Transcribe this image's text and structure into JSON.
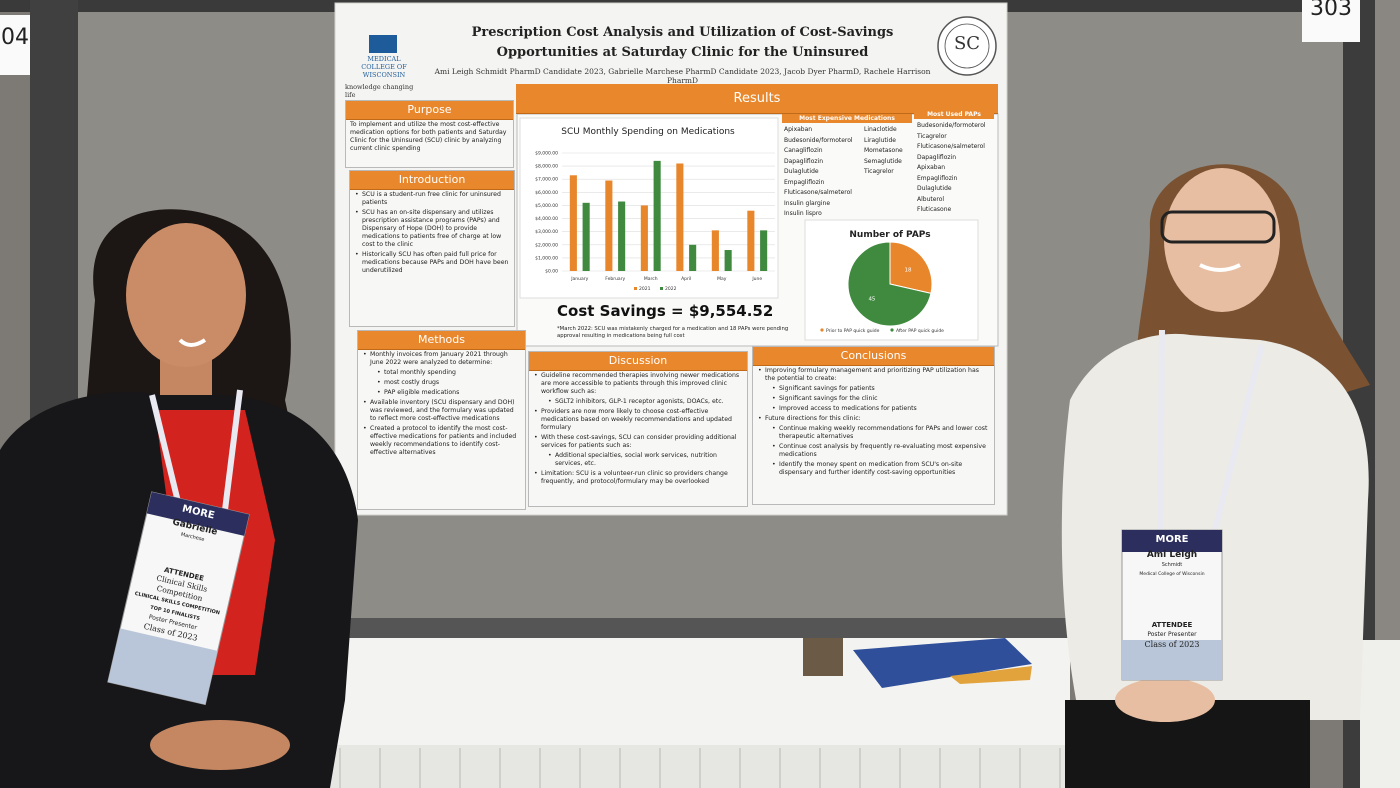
{
  "booth_numbers": [
    "04",
    "303"
  ],
  "poster": {
    "logo": {
      "name": "MEDICAL COLLEGE OF WISCONSIN",
      "tagline": "knowledge changing life"
    },
    "title": "Prescription Cost Analysis and Utilization of Cost-Savings Opportunities at Saturday Clinic for the Uninsured",
    "authors": "Ami Leigh Schmidt PharmD Candidate 2023, Gabrielle Marchese PharmD Candidate 2023, Jacob Dyer PharmD, Rachele Harrison PharmD",
    "seal": "SC",
    "sections": [
      {
        "heading": "Purpose",
        "items": [
          {
            "text": "To implement and utilize the most cost-effective medication options for both patients and Saturday Clinic for the Uninsured (SCU) clinic by analyzing current clinic spending",
            "level": 0
          }
        ]
      },
      {
        "heading": "Introduction",
        "items": [
          {
            "text": "SCU is a student-run free clinic for uninsured patients",
            "level": 1
          },
          {
            "text": "SCU has an on-site dispensary and utilizes prescription assistance programs (PAPs) and Dispensary of Hope (DOH) to provide medications to patients free of charge at low cost to the clinic",
            "level": 1
          },
          {
            "text": "Historically SCU has often paid full price for medications because PAPs and DOH have been underutilized",
            "level": 1
          }
        ]
      },
      {
        "heading": "Methods",
        "items": [
          {
            "text": "Monthly invoices from January 2021 through June 2022 were analyzed to determine:",
            "level": 1
          },
          {
            "text": "total monthly spending",
            "level": 2
          },
          {
            "text": "most costly drugs",
            "level": 2
          },
          {
            "text": "PAP eligible medications",
            "level": 2
          },
          {
            "text": "Available inventory (SCU dispensary and DOH) was reviewed, and the formulary was updated to reflect more cost-effective medications",
            "level": 1
          },
          {
            "text": "Created a protocol to identify the most cost-effective medications for patients and included weekly recommendations to identify cost-effective alternatives",
            "level": 1
          }
        ]
      },
      {
        "heading": "Discussion",
        "items": [
          {
            "text": "Guideline recommended therapies involving newer medications are more accessible to patients through this improved clinic workflow such as:",
            "level": 1
          },
          {
            "text": "SGLT2 inhibitors, GLP-1 receptor agonists, DOACs, etc.",
            "level": 2
          },
          {
            "text": "Providers are now more likely to choose cost-effective medications based on weekly recommendations and updated formulary",
            "level": 1
          },
          {
            "text": "With these cost-savings, SCU can consider providing additional services for patients such as:",
            "level": 1
          },
          {
            "text": "Additional specialties, social work services, nutrition services, etc.",
            "level": 2
          },
          {
            "text": "Limitation: SCU is a volunteer-run clinic so providers change frequently, and protocol/formulary may be overlooked",
            "level": 1
          }
        ]
      },
      {
        "heading": "Conclusions",
        "items": [
          {
            "text": "Improving formulary management and prioritizing PAP utilization has the potential to create:",
            "level": 1
          },
          {
            "text": "Significant savings for patients",
            "level": 2
          },
          {
            "text": "Significant savings for the clinic",
            "level": 2
          },
          {
            "text": "Improved access to medications for patients",
            "level": 2
          },
          {
            "text": "Future directions for this clinic:",
            "level": 1
          },
          {
            "text": "Continue making weekly recommendations for PAPs and lower cost therapeutic alternatives",
            "level": 2
          },
          {
            "text": "Continue cost analysis by frequently re-evaluating most expensive medications",
            "level": 2
          },
          {
            "text": "Identify the money spent on medication from SCU's on-site dispensary and further identify cost-saving opportunities",
            "level": 2
          }
        ]
      }
    ],
    "results": {
      "heading": "Results",
      "cost_savings": "Cost Savings = $9,554.52",
      "footnote": "*March 2022: SCU was mistakenly charged for a medication and 18 PAPs were pending approval resulting in medications being full cost",
      "most_expensive": {
        "header": "Most Expensive Medications",
        "columns": [
          [
            "Apixaban",
            "Budesonide/formoterol",
            "Canagliflozin",
            "Dapagliflozin",
            "Dulaglutide",
            "Empagliflozin",
            "Fluticasone/salmeterol",
            "Insulin glargine",
            "Insulin lispro"
          ],
          [
            "Linaclotide",
            "Liraglutide",
            "Mometasone",
            "Semaglutide",
            "Ticagrelor"
          ]
        ]
      },
      "most_used": {
        "header": "Most Used PAPs",
        "items": [
          "Budesonide/formoterol",
          "Ticagrelor",
          "Fluticasone/salmeterol",
          "Dapagliflozin",
          "Apixaban",
          "Empagliflozin",
          "Dulaglutide",
          "Albuterol",
          "Fluticasone"
        ]
      }
    }
  },
  "chart_data": [
    {
      "type": "bar",
      "title": "SCU Monthly Spending on Medications",
      "categories": [
        "January",
        "February",
        "March",
        "April",
        "May",
        "June"
      ],
      "series": [
        {
          "name": "2021",
          "color": "#e8862c",
          "values": [
            7300,
            6900,
            5000,
            8200,
            3100,
            4600
          ]
        },
        {
          "name": "2022",
          "color": "#3f8a3e",
          "values": [
            5200,
            5300,
            8400,
            2000,
            1600,
            3100
          ]
        }
      ],
      "ylim": [
        0,
        9000
      ],
      "yticks": [
        {
          "value": 0,
          "label": "$0.00"
        },
        {
          "value": 1000,
          "label": "$1,000.00"
        },
        {
          "value": 2000,
          "label": "$2,000.00"
        },
        {
          "value": 3000,
          "label": "$3,000.00"
        },
        {
          "value": 4000,
          "label": "$4,000.00"
        },
        {
          "value": 5000,
          "label": "$5,000.00"
        },
        {
          "value": 6000,
          "label": "$6,000.00"
        },
        {
          "value": 7000,
          "label": "$7,000.00"
        },
        {
          "value": 8000,
          "label": "$8,000.00"
        },
        {
          "value": 9000,
          "label": "$9,000.00"
        }
      ],
      "grid": true
    },
    {
      "type": "pie",
      "title": "Number of PAPs",
      "categories": [
        "Prior to PAP quick guide",
        "After PAP quick guide"
      ],
      "values": [
        18,
        45
      ],
      "colors": [
        "#e8862c",
        "#3f8a3e"
      ]
    }
  ],
  "badges": [
    {
      "lines": [
        "MORE",
        "Gabrielle",
        "Marchese",
        "ATTENDEE",
        "Clinical Skills Competition",
        "CLINICAL SKILLS COMPETITION TOP 10 FINALISTS",
        "Poster Presenter",
        "Class of 2023"
      ]
    },
    {
      "lines": [
        "MORE",
        "Ami Leigh",
        "Schmidt",
        "Medical College of Wisconsin",
        "ATTENDEE",
        "Poster Presenter",
        "Class of 2023"
      ]
    }
  ]
}
